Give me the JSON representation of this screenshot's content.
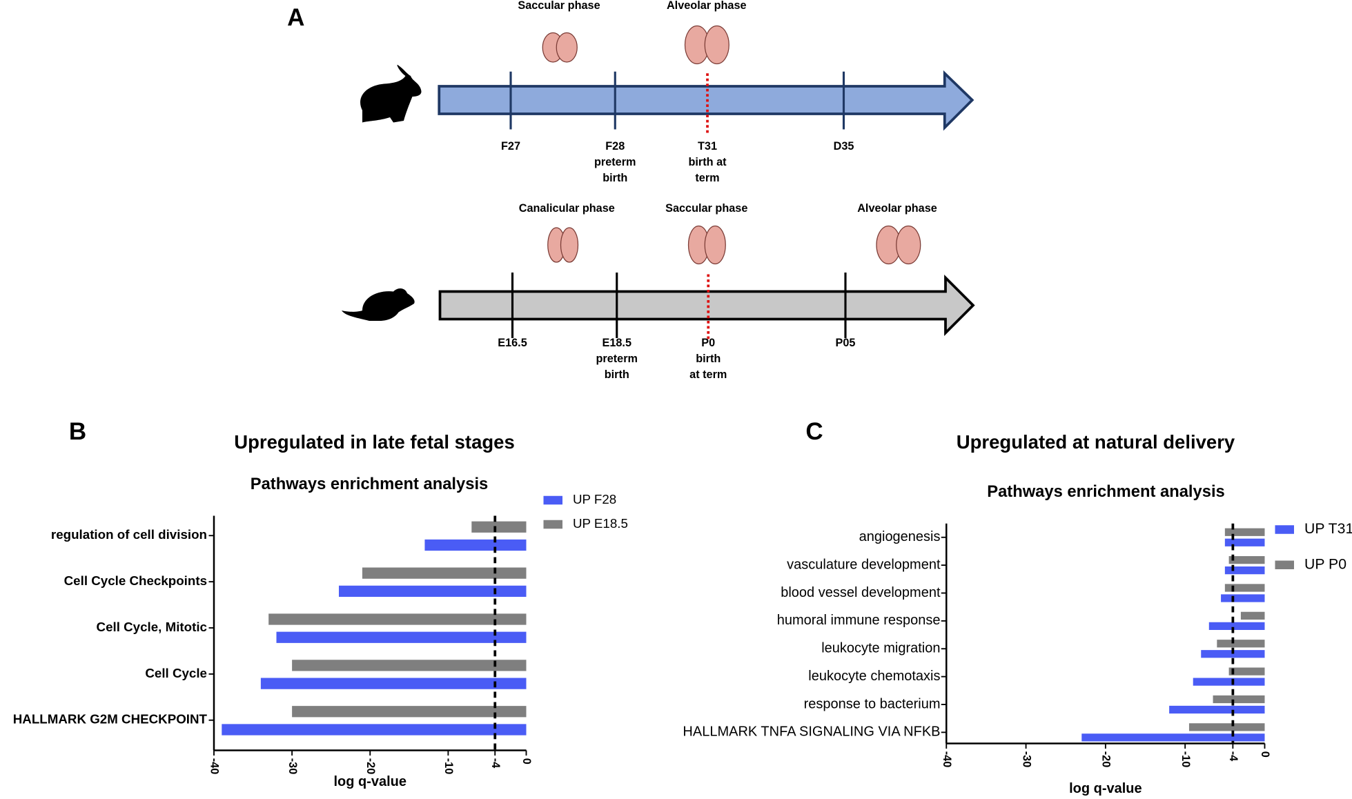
{
  "diagram": {
    "label": "A",
    "timelines": [
      {
        "phases": [
          "Saccular phase",
          "Alveolar phase"
        ],
        "stages": [
          [
            "F27"
          ],
          [
            "F28",
            "preterm",
            "birth"
          ],
          [
            "T31",
            "birth at",
            "term"
          ],
          [
            "D35"
          ]
        ]
      },
      {
        "phases": [
          "Canalicular phase",
          "Saccular phase",
          "Alveolar phase"
        ],
        "stages": [
          [
            "E16.5"
          ],
          [
            "E18.5",
            "preterm",
            "birth"
          ],
          [
            "P0",
            "birth",
            "at term"
          ],
          [
            "P05"
          ]
        ]
      }
    ]
  },
  "chart_data": [
    {
      "type": "hbar",
      "label": "B",
      "title": "Upregulated in late fetal stages",
      "subtitle": "Pathways enrichment analysis",
      "categories": [
        "regulation of cell division",
        "Cell Cycle Checkpoints",
        "Cell Cycle, Mitotic",
        "Cell Cycle",
        "HALLMARK G2M CHECKPOINT"
      ],
      "series": [
        {
          "name": "UP F28",
          "color": "#4a5cf5",
          "values": [
            -13,
            -24,
            -32,
            -34,
            -39
          ]
        },
        {
          "name": "UP E18.5",
          "color": "#7f7f7f",
          "values": [
            -7,
            -21,
            -33,
            -30,
            -30
          ]
        }
      ],
      "x_label": "log q-value",
      "xlim": [
        -40,
        0
      ],
      "xticks": [
        -40,
        -30,
        -20,
        -10,
        -4,
        0
      ],
      "reference_line": -4,
      "legend": "upper right"
    },
    {
      "type": "hbar",
      "label": "C",
      "title": "Upregulated at natural delivery",
      "subtitle": "Pathways enrichment analysis",
      "categories": [
        "angiogenesis",
        "vasculature development",
        "blood vessel development",
        "humoral immune response",
        "leukocyte migration",
        "leukocyte chemotaxis",
        "response to bacterium",
        "HALLMARK TNFA SIGNALING VIA NFKB"
      ],
      "series": [
        {
          "name": "UP T31",
          "color": "#4a5cf5",
          "values": [
            -5,
            -5,
            -5.5,
            -7,
            -8,
            -9,
            -12,
            -23
          ]
        },
        {
          "name": "UP P0",
          "color": "#7f7f7f",
          "values": [
            -5,
            -4.5,
            -5,
            -3,
            -6,
            -4.5,
            -6.5,
            -9.5
          ]
        }
      ],
      "x_label": "log q-value",
      "xlim": [
        -40,
        0
      ],
      "xticks": [
        -40,
        -30,
        -20,
        -10,
        -4,
        0
      ],
      "reference_line": -4,
      "legend": "upper right"
    }
  ]
}
